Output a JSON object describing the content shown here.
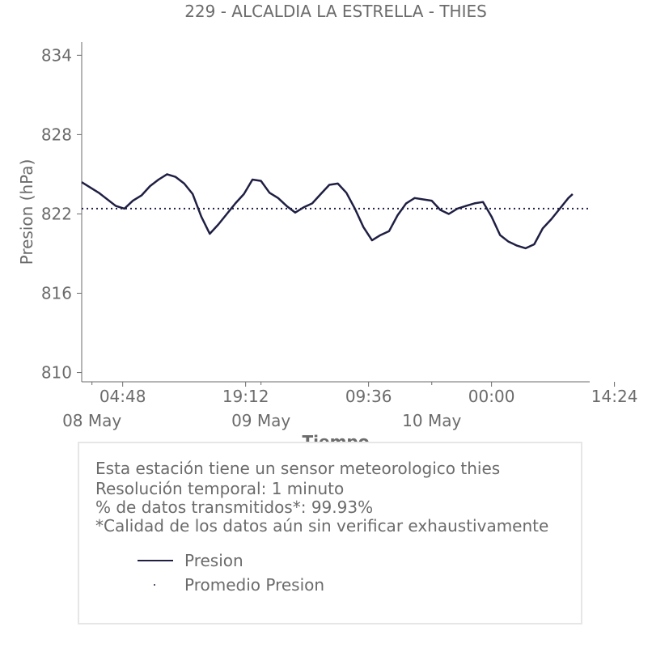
{
  "chart_data": {
    "type": "line",
    "title": "229 - ALCALDIA LA ESTRELLA - THIES",
    "xlabel": "Tiempo",
    "ylabel": "Presion (hPa)",
    "ylim": [
      809.3,
      835
    ],
    "yticks": [
      810,
      816,
      822,
      828,
      834
    ],
    "x_range_hours": [
      0,
      59.5
    ],
    "xticks": [
      {
        "label": "04:48",
        "hour": 4.8
      },
      {
        "label": "19:12",
        "hour": 19.2
      },
      {
        "label": "09:36",
        "hour": 33.6
      },
      {
        "label": "00:00",
        "hour": 48
      },
      {
        "label": "14:24",
        "hour": 62.4
      }
    ],
    "date_labels": [
      {
        "label": "08 May",
        "hour": 1.2
      },
      {
        "label": "09 May",
        "hour": 21
      },
      {
        "label": "10 May",
        "hour": 41
      }
    ],
    "grid": false,
    "legend": "inside-box-below",
    "series": [
      {
        "name": "Presion",
        "color": "#1f1f44",
        "style": "solid",
        "points": [
          [
            0,
            824.4
          ],
          [
            2,
            823.6
          ],
          [
            4,
            822.6
          ],
          [
            5,
            822.4
          ],
          [
            6,
            823.0
          ],
          [
            7,
            823.4
          ],
          [
            8,
            824.1
          ],
          [
            9,
            824.6
          ],
          [
            10,
            825.0
          ],
          [
            11,
            824.8
          ],
          [
            12,
            824.3
          ],
          [
            13,
            823.5
          ],
          [
            14,
            821.8
          ],
          [
            15,
            820.5
          ],
          [
            16,
            821.2
          ],
          [
            17,
            822.0
          ],
          [
            18,
            822.8
          ],
          [
            19,
            823.5
          ],
          [
            20,
            824.6
          ],
          [
            21,
            824.5
          ],
          [
            22,
            823.6
          ],
          [
            23,
            823.2
          ],
          [
            24,
            822.6
          ],
          [
            25,
            822.1
          ],
          [
            26,
            822.5
          ],
          [
            27,
            822.8
          ],
          [
            28,
            823.5
          ],
          [
            29,
            824.2
          ],
          [
            30,
            824.3
          ],
          [
            31,
            823.6
          ],
          [
            32,
            822.4
          ],
          [
            33,
            821.0
          ],
          [
            34,
            820.0
          ],
          [
            35,
            820.4
          ],
          [
            36,
            820.7
          ],
          [
            37,
            821.9
          ],
          [
            38,
            822.8
          ],
          [
            39,
            823.2
          ],
          [
            40,
            823.1
          ],
          [
            41,
            823.0
          ],
          [
            42,
            822.3
          ],
          [
            43,
            822.0
          ],
          [
            44,
            822.4
          ],
          [
            45,
            822.6
          ],
          [
            46,
            822.8
          ],
          [
            47,
            822.9
          ],
          [
            48,
            821.8
          ],
          [
            49,
            820.4
          ],
          [
            50,
            819.9
          ],
          [
            51,
            819.6
          ],
          [
            52,
            819.4
          ],
          [
            53,
            819.7
          ],
          [
            54,
            820.9
          ],
          [
            55,
            821.6
          ],
          [
            56,
            822.4
          ],
          [
            57,
            823.2
          ],
          [
            57.5,
            823.5
          ]
        ]
      },
      {
        "name": "Promedio Presion",
        "color": "#1f1f44",
        "style": "dotted",
        "constant": 822.4
      }
    ]
  },
  "info": {
    "line1": "Esta estación tiene un sensor meteorologico thies",
    "line2": "Resolución temporal: 1 minuto",
    "line3": "% de datos transmitidos*: 99.93%",
    "line4": "*Calidad de los datos aún sin verificar exhaustivamente"
  },
  "legend": {
    "item1": "Presion",
    "item2": "Promedio Presion"
  }
}
